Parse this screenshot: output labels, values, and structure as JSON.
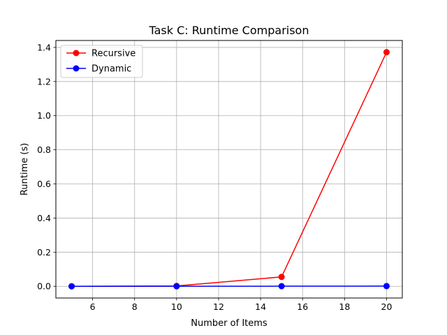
{
  "chart_data": {
    "type": "line",
    "title": "Task C: Runtime Comparison",
    "xlabel": "Number of Items",
    "ylabel": "Runtime (s)",
    "x": [
      5,
      10,
      15,
      20
    ],
    "xlim": [
      4.25,
      20.75
    ],
    "ylim": [
      -0.0686,
      1.4406
    ],
    "xticks": [
      6,
      8,
      10,
      12,
      14,
      16,
      18,
      20
    ],
    "yticks": [
      0.0,
      0.2,
      0.4,
      0.6,
      0.8,
      1.0,
      1.2,
      1.4
    ],
    "xtick_labels": [
      "6",
      "8",
      "10",
      "12",
      "14",
      "16",
      "18",
      "20"
    ],
    "ytick_labels": [
      "0.0",
      "0.2",
      "0.4",
      "0.6",
      "0.8",
      "1.0",
      "1.2",
      "1.4"
    ],
    "grid": true,
    "legend_position": "upper-left",
    "series": [
      {
        "name": "Recursive",
        "color": "#ff0000",
        "values": [
          0.0001,
          0.002,
          0.055,
          1.372
        ]
      },
      {
        "name": "Dynamic",
        "color": "#0000ff",
        "values": [
          0.0001,
          0.0003,
          0.0007,
          0.0012
        ]
      }
    ]
  }
}
